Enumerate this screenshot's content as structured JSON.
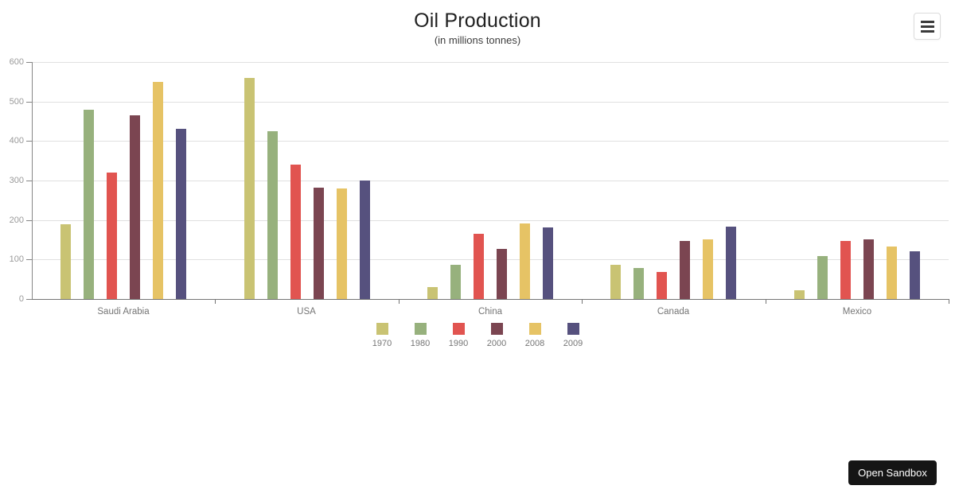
{
  "header": {
    "menu_button_icon": "hamburger"
  },
  "sandbox": {
    "label": "Open Sandbox"
  },
  "chart_data": {
    "type": "bar",
    "title": "Oil Production",
    "subtitle": "(in millions tonnes)",
    "categories": [
      "Saudi Arabia",
      "USA",
      "China",
      "Canada",
      "Mexico"
    ],
    "series": [
      {
        "name": "1970",
        "color": "#c9c373",
        "values": [
          190,
          560,
          30,
          87,
          22
        ]
      },
      {
        "name": "1980",
        "color": "#97b17d",
        "values": [
          480,
          425,
          87,
          78,
          109
        ]
      },
      {
        "name": "1990",
        "color": "#e15450",
        "values": [
          320,
          340,
          166,
          68,
          147
        ]
      },
      {
        "name": "2000",
        "color": "#7b4551",
        "values": [
          465,
          282,
          127,
          146,
          150
        ]
      },
      {
        "name": "2008",
        "color": "#e6c365",
        "values": [
          550,
          280,
          191,
          150,
          133
        ]
      },
      {
        "name": "2009",
        "color": "#56517e",
        "values": [
          430,
          300,
          181,
          183,
          121
        ]
      }
    ],
    "ylabel": "",
    "xlabel": "",
    "ylim": [
      0,
      600
    ],
    "yticks": [
      0,
      100,
      200,
      300,
      400,
      500,
      600
    ],
    "grid": true,
    "legend_position": "bottom-center"
  }
}
